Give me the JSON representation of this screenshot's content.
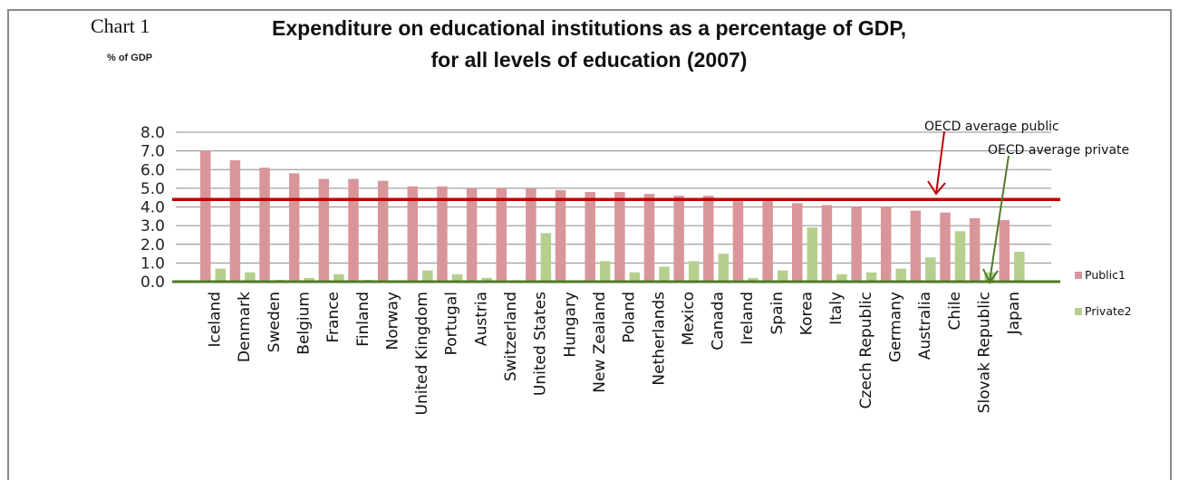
{
  "chart_label": "Chart 1",
  "units_label": "% of GDP",
  "colors": {
    "public": "#d9969a",
    "private": "#b5d08e",
    "oecd_public_line": "#c00000",
    "oecd_private_line": "#4f7a28",
    "grid": "#8c8c8c"
  },
  "chart_data": {
    "type": "bar",
    "title": "Expenditure on educational institutions as a percentage of GDP,",
    "subtitle": "for all levels of education (2007)",
    "ylim": [
      0,
      8
    ],
    "yticks": [
      "0.0",
      "1.0",
      "2.0",
      "3.0",
      "4.0",
      "5.0",
      "6.0",
      "7.0",
      "8.0"
    ],
    "grid": true,
    "legend_position": "right",
    "categories": [
      "Iceland",
      "Denmark",
      "Sweden",
      "Belgium",
      "France",
      "Finland",
      "Norway",
      "United Kingdom",
      "Portugal",
      "Austria",
      "Switzerland",
      "United States",
      "Hungary",
      "New Zealand",
      "Poland",
      "Netherlands",
      "Mexico",
      "Canada",
      "Ireland",
      "Spain",
      "Korea",
      "Italy",
      "Czech Republic",
      "Germany",
      "Australia",
      "Chile",
      "Slovak Republic",
      "Japan"
    ],
    "series": [
      {
        "name": "Public1",
        "values": [
          7.0,
          6.5,
          6.1,
          5.8,
          5.5,
          5.5,
          5.4,
          5.1,
          5.1,
          5.0,
          5.0,
          5.0,
          4.9,
          4.8,
          4.8,
          4.7,
          4.6,
          4.6,
          4.3,
          4.3,
          4.2,
          4.1,
          4.0,
          4.0,
          3.8,
          3.7,
          3.4,
          3.3
        ]
      },
      {
        "name": "Private2",
        "values": [
          0.7,
          0.5,
          0.1,
          0.2,
          0.4,
          0.1,
          0.0,
          0.6,
          0.4,
          0.2,
          0.0,
          2.6,
          0.0,
          1.1,
          0.5,
          0.8,
          1.1,
          1.5,
          0.2,
          0.6,
          2.9,
          0.4,
          0.5,
          0.7,
          1.3,
          2.7,
          0.5,
          1.6
        ]
      }
    ],
    "reference_lines": [
      {
        "name": "OECD average public",
        "value": 4.4
      },
      {
        "name": "OECD average private",
        "value": 0.0
      }
    ],
    "annotations": [
      "OECD average public",
      "OECD average private"
    ]
  }
}
